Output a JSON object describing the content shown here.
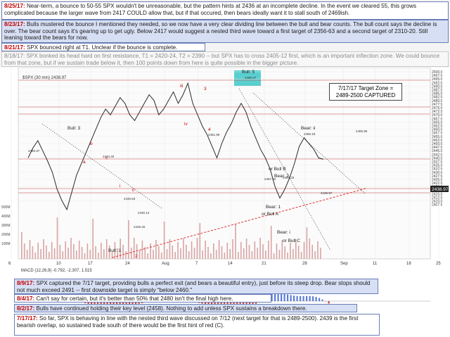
{
  "notes": {
    "n1": {
      "date": "8/25/17:",
      "text": "Near-term, a bounce to 50-55 SPX wouldn't be unreasonable, but the pattern hints at 2436 at an incomplete decline.  In the event we cleared 55, this grows complicated because the larger wave from 2417 COULD allow that, but if that occured, then bears ideally want it to stall south of 2469ish."
    },
    "n2": {
      "date": "8/23/17:",
      "text": "Bulls mustered the bounce I mentioned they needed, so we now have a very clear dividing line between the bull and bear counts.  The bull count says the decline is over.  The bear count says it's gearing up to get ugly.  Below 2417 would suggest a nested third wave toward a first target of 2356-63 and a second target of 2310-20.  Still leaning toward the bears for now."
    },
    "n3": {
      "date": "8/21/17:",
      "text": "SPX bounced right at T1.  Unclear if the bounce is complete."
    },
    "n4": {
      "date": "8/18/17:",
      "text": "SPX bonked its head hard on first resistance, T1 = 2420-24, T2 = 2390 -- but SPX has to cross 2405-12 first, which is an important inflection zone.  We could bounce from that zone, but if we sustain trade below it, then 100 points down from here is quite possible in the bigger picture."
    },
    "n5": {
      "date": "8/9/17:",
      "text": "SPX captured the 7/17 target, providing bulls a perfect exit (and bears a beautiful entry), just before its steep drop.  Bear stops should not much exceed 2491 -- first downside target is simply \"below 2460.\""
    },
    "n6": {
      "date": "8/4/17:",
      "text": "Can't say for certain, but it's better than 50% that 2480 isn't the final high here."
    },
    "n7": {
      "date": "8/2/17:",
      "text": "Bulls have continued holding their key level (2458).  Nothing to add unless SPX sustains a breakdown there."
    },
    "n8": {
      "date": "7/17/17:",
      "text": "So far, SPX is behaving in line with the nested third wave discussed on 7/12 (next target for that is 2489-2500). 2439 is the first bearish overlap, so sustained trade south of there would be the first hint of red (C)."
    }
  },
  "target_box": {
    "line1": "7/17/17 Target Zone =",
    "line2": "2489-2500  CAPTURED"
  },
  "ticker": "$SPX (30 min)  2438.97",
  "macd_label": "MACD (12,26,9)  -0.792,  -2.307,  1.515",
  "chart_data": {
    "type": "line",
    "title": "",
    "series": [
      {
        "name": "$SPX",
        "values": [
          2440,
          2447,
          2452,
          2445,
          2438,
          2430,
          2418,
          2410,
          2404,
          2416,
          2428,
          2436,
          2444,
          2452,
          2460,
          2468,
          2474,
          2470,
          2476,
          2482,
          2478,
          2470,
          2466,
          2472,
          2478,
          2484,
          2480,
          2470,
          2474,
          2480,
          2486,
          2478,
          2484,
          2492,
          2478,
          2470,
          2462,
          2456,
          2448,
          2440,
          2450,
          2458,
          2464,
          2472,
          2478,
          2472,
          2462,
          2454,
          2446,
          2440,
          2432,
          2420,
          2412,
          2418,
          2426,
          2436,
          2448,
          2454,
          2450,
          2446,
          2440,
          2439
        ]
      }
    ],
    "ylim": [
      2400,
      2500
    ],
    "y_ticks": [
      "2500.0",
      "2497.5",
      "2495.0",
      "2492.5",
      "2490.0",
      "2487.5",
      "2485.0",
      "2482.5",
      "2480.0",
      "2477.5",
      "2475.0",
      "2472.5",
      "2470.0",
      "2467.5",
      "2465.0",
      "2462.5",
      "2460.0",
      "2457.5",
      "2455.0",
      "2452.5",
      "2450.0",
      "2447.5",
      "2445.0",
      "2442.5",
      "2440.0",
      "2437.5",
      "2435.0",
      "2432.5",
      "2430.0",
      "2427.5",
      "2425.0",
      "2422.5",
      "2420.0",
      "2417.5",
      "2415.0",
      "2412.5",
      "2410.0",
      "2407.5"
    ],
    "last_price": "2438.97",
    "x_ticks": [
      "6",
      "10",
      "17",
      "24",
      "Aug",
      "7",
      "14",
      "21",
      "28",
      "Sep",
      "11",
      "18",
      "25"
    ],
    "volume_ticks": [
      "500M",
      "400M",
      "300M",
      "200M",
      "100M"
    ],
    "wave_labels": [
      "Bull: 5",
      "or Bull B",
      "Bear: 2",
      "iii",
      "3",
      "iv",
      "4",
      "Bull: 3",
      "b",
      "a",
      "c",
      "i",
      "ii",
      "Bull: 1",
      "2",
      "Bear: ii",
      "Bear: 1",
      "or Bull A",
      "Bear: i",
      "or Bull C"
    ],
    "price_labels": [
      "2486.27",
      "2467.02",
      "2463.20",
      "2465.95",
      "2445.37",
      "2461.99",
      "2443.40",
      "2446.63",
      "2430.13",
      "2426.40",
      "2455.18",
      "2438.97"
    ]
  },
  "colors": {
    "candle": "#2a2a2a",
    "volume": "#d9a3a3",
    "trend_red": "#e03030",
    "trend_dot": "#333333",
    "resistance": "#c84a4a",
    "target_zone": "#3cc7c7",
    "note_blue": "#d7dff4",
    "date_red": "#c00000"
  }
}
